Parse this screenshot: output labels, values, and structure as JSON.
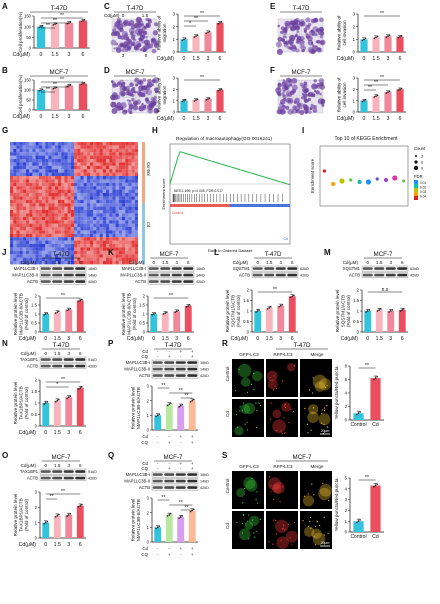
{
  "colors": {
    "bar": [
      "#33c3dd",
      "#f7b4bc",
      "#f0879a",
      "#ea4f60"
    ],
    "barCq": [
      "#33c3dd",
      "#b8e8a0",
      "#d79ef0",
      "#ffb896"
    ],
    "barRS": [
      "#33c3dd",
      "#ea4f60"
    ],
    "heatRed": "#e22c2c",
    "heatBlue": "#2b3fd4",
    "gseaLine": "#1fb94a",
    "kegg": [
      "#e31a1c",
      "#f0a500",
      "#b8c400",
      "#5ec93c",
      "#12b7b1",
      "#1e90ff",
      "#5c4fd6",
      "#9b45c7",
      "#d63aa3",
      "#7cc144"
    ]
  },
  "labels": {
    "cd": "Cd(μM)",
    "doses": [
      "0",
      "1.5",
      "3",
      "6"
    ],
    "cq": "CQ",
    "pm": [
      "-",
      "+",
      "-",
      "+"
    ],
    "cdRow": [
      "-",
      "-",
      "+",
      "+"
    ],
    "sig": {
      "two": "**",
      "one": "*",
      "ns": "n.s"
    }
  },
  "panels": {
    "A": {
      "letter": "A",
      "cell": "T-47D",
      "ylabel": "Cell proliferation(%)"
    },
    "B": {
      "letter": "B",
      "cell": "MCF-7",
      "ylabel": "Cell proliferation(%)"
    },
    "C": {
      "letter": "C",
      "cell": "T-47D",
      "ylabel": "Relative ability of migration",
      "imgLabels": [
        "0",
        "1.5",
        "3",
        "6"
      ]
    },
    "D": {
      "letter": "D",
      "cell": "MCF-7",
      "ylabel": "Relative ability of migration"
    },
    "E": {
      "letter": "E",
      "cell": "T-47D",
      "ylabel": "Relative ability of cell invasion",
      "imgLabels": [
        "0",
        "1.5",
        "3",
        "6"
      ]
    },
    "F": {
      "letter": "F",
      "cell": "MCF-7",
      "ylabel": "Relative ability of cell invasion"
    },
    "G": {
      "letter": "G",
      "legend": [
        "Control",
        "Cd"
      ]
    },
    "H": {
      "letter": "H",
      "title": "Regulation of macroautophagy(GO:0016241)",
      "stats": "NES:1.699, p=0.005, FDR:0.017",
      "xlabel": "Rank in Ordered Dataset",
      "ylabel": "Enrichment score",
      "pos": "Control",
      "neg": "Cd"
    },
    "I": {
      "letter": "I",
      "title": "Top 10 of KEGG Enrichment",
      "ylabel": "Enrichment score",
      "count": "Count",
      "fdr": "FDR",
      "countVals": [
        "3",
        "6",
        "9"
      ],
      "fdrVals": [
        "0.01",
        "0.02",
        "0.03",
        "0.04"
      ]
    },
    "J": {
      "letter": "J",
      "cell": "T-47D",
      "bands": [
        "MAP1LC3B-I",
        "MAP1LC3B-II",
        "ACTB"
      ],
      "kda": [
        "16kD",
        "14kD",
        "42kD"
      ],
      "ylabel": "Relative protein level MAP1LC3B-II/ACTB (Fold of control)"
    },
    "K": {
      "letter": "K",
      "cell": "MCF-7",
      "bands": [
        "MAP1LC3B-I",
        "MAP1LC3B-II",
        "ACTB"
      ],
      "kda": [
        "16kD",
        "14kD",
        "42kD"
      ],
      "ylabel": "Relative protein level MAP1LC3B-II/ACTB (Fold of control)"
    },
    "L": {
      "letter": "L",
      "cell": "T-47D",
      "bands": [
        "SQSTM1",
        "ACTB"
      ],
      "kda": [
        "62kD",
        "42kD"
      ],
      "ylabel": "Relative protein level SQSTM1/ACTB (Fold of control)"
    },
    "M": {
      "letter": "M",
      "cell": "MCF-7",
      "bands": [
        "SQSTM1",
        "ACTB"
      ],
      "kda": [
        "62kD",
        "42kD"
      ],
      "ylabel": "Relative protein level SQSTM1/ACTB (Fold of control)"
    },
    "N": {
      "letter": "N",
      "cell": "T-47D",
      "bands": [
        "TAX1BP1",
        "ACTB"
      ],
      "kda": [
        "91kD",
        "42kD"
      ],
      "ylabel": "Relative protein level TAX1BP1/ACTB (Fold of control)"
    },
    "O": {
      "letter": "O",
      "cell": "MCF-7",
      "bands": [
        "TAX1BP1",
        "ACTB"
      ],
      "kda": [
        "91kD",
        "42kD"
      ],
      "ylabel": "Relative protein level TAX1BP1/ACTB (Fold of control)"
    },
    "P": {
      "letter": "P",
      "cell": "T-47D",
      "bands": [
        "MAP1LC3B-I",
        "MAP1LC3B-II",
        "ACTB"
      ],
      "kda": [
        "16kD",
        "14kD",
        "42kD"
      ],
      "ylabel": "Relative protein level MAP1LC3B-II/ACTB"
    },
    "Q": {
      "letter": "Q",
      "cell": "MCF-7",
      "bands": [
        "MAP1LC3B-I",
        "MAP1LC3B-II",
        "ACTB"
      ],
      "kda": [
        "16kD",
        "14kD",
        "42kD"
      ],
      "ylabel": "Relative protein level MAP1LC3B-II/ACTB"
    },
    "R": {
      "letter": "R",
      "cell": "T-47D",
      "cols": [
        "GFP-LC3",
        "RFP-LC3",
        "Merge"
      ],
      "rows": [
        "Control",
        "Cd"
      ],
      "scale": "20μm",
      "ylabel": "Yellow puncta/Red puncta",
      "xcats": [
        "Control",
        "Cd"
      ]
    },
    "S": {
      "letter": "S",
      "cell": "MCF-7",
      "cols": [
        "GFP-LC3",
        "RFP-LC3",
        "Merge"
      ],
      "rows": [
        "Control",
        "Cd"
      ],
      "scale": "20μm",
      "ylabel": "Yellow puncta/Red puncta",
      "xcats": [
        "Control",
        "Cd"
      ]
    }
  },
  "chart_data": [
    {
      "panel": "A",
      "type": "bar",
      "categories": [
        "0",
        "1.5",
        "3",
        "6"
      ],
      "values": [
        100,
        112,
        118,
        128
      ],
      "ylim": [
        0,
        150
      ],
      "yticks": [
        0,
        50,
        100,
        150
      ]
    },
    {
      "panel": "B",
      "type": "bar",
      "categories": [
        "0",
        "1.5",
        "3",
        "6"
      ],
      "values": [
        100,
        110,
        122,
        132
      ],
      "ylim": [
        0,
        150
      ],
      "yticks": [
        0,
        50,
        100,
        150
      ]
    },
    {
      "panel": "C",
      "type": "bar",
      "categories": [
        "0",
        "1.5",
        "3",
        "6"
      ],
      "values": [
        1.0,
        1.25,
        1.55,
        2.3
      ],
      "ylim": [
        0,
        3
      ],
      "yticks": [
        0,
        1,
        2,
        3
      ]
    },
    {
      "panel": "D",
      "type": "bar",
      "categories": [
        "0",
        "1.5",
        "3",
        "6"
      ],
      "values": [
        1.0,
        1.05,
        1.15,
        1.95
      ],
      "ylim": [
        0,
        3
      ],
      "yticks": [
        0,
        1,
        2,
        3
      ]
    },
    {
      "panel": "E",
      "type": "bar",
      "categories": [
        "0",
        "1.5",
        "3",
        "6"
      ],
      "values": [
        1.0,
        1.15,
        1.25,
        1.2
      ],
      "ylim": [
        0,
        3
      ],
      "yticks": [
        0,
        1,
        2,
        3
      ]
    },
    {
      "panel": "F",
      "type": "bar",
      "categories": [
        "0",
        "1.5",
        "3",
        "6"
      ],
      "values": [
        1.0,
        1.4,
        1.75,
        2.0
      ],
      "ylim": [
        0,
        3
      ],
      "yticks": [
        0,
        1,
        2,
        3
      ]
    },
    {
      "panel": "J",
      "type": "bar",
      "categories": [
        "0",
        "1.5",
        "3",
        "6"
      ],
      "values": [
        1.0,
        1.1,
        1.25,
        1.75
      ],
      "ylim": [
        0,
        2
      ],
      "yticks": [
        0,
        0.5,
        1,
        1.5,
        2
      ]
    },
    {
      "panel": "K",
      "type": "bar",
      "categories": [
        "0",
        "1.5",
        "3",
        "6"
      ],
      "values": [
        1.0,
        1.05,
        1.15,
        1.45
      ],
      "ylim": [
        0,
        2
      ],
      "yticks": [
        0,
        0.5,
        1,
        1.5,
        2
      ]
    },
    {
      "panel": "L",
      "type": "bar",
      "categories": [
        "0",
        "1.5",
        "3",
        "6"
      ],
      "values": [
        1.0,
        1.15,
        1.25,
        1.7
      ],
      "ylim": [
        0,
        2
      ],
      "yticks": [
        0,
        0.5,
        1,
        1.5,
        2
      ]
    },
    {
      "panel": "M",
      "type": "bar",
      "categories": [
        "0",
        "1.5",
        "3",
        "6"
      ],
      "values": [
        1.0,
        1.05,
        1.0,
        1.05
      ],
      "ylim": [
        0,
        2
      ],
      "yticks": [
        0,
        0.5,
        1,
        1.5,
        2
      ]
    },
    {
      "panel": "N",
      "type": "bar",
      "categories": [
        "0",
        "1.5",
        "3",
        "6"
      ],
      "values": [
        1.0,
        1.1,
        1.25,
        1.65
      ],
      "ylim": [
        0,
        2
      ],
      "yticks": [
        0,
        0.5,
        1,
        1.5,
        2
      ]
    },
    {
      "panel": "O",
      "type": "bar",
      "categories": [
        "0",
        "1.5",
        "3",
        "6"
      ],
      "values": [
        1.0,
        1.45,
        1.5,
        2.1
      ],
      "ylim": [
        0,
        3
      ],
      "yticks": [
        0,
        1,
        2,
        3
      ]
    },
    {
      "panel": "P",
      "type": "bar",
      "categories": [
        "1",
        "2",
        "3",
        "4"
      ],
      "values": [
        1.0,
        1.75,
        1.65,
        2.0
      ],
      "ylim": [
        0,
        3
      ],
      "yticks": [
        0,
        1,
        2,
        3
      ]
    },
    {
      "panel": "Q",
      "type": "bar",
      "categories": [
        "1",
        "2",
        "3",
        "4"
      ],
      "values": [
        1.0,
        1.85,
        1.7,
        2.15
      ],
      "ylim": [
        0,
        3
      ],
      "yticks": [
        0,
        1,
        2,
        3
      ]
    },
    {
      "panel": "R",
      "type": "bar",
      "categories": [
        "Control",
        "Cd"
      ],
      "values": [
        1.0,
        6.2
      ],
      "ylim": [
        0,
        8
      ],
      "yticks": [
        0,
        2,
        4,
        6,
        8
      ]
    },
    {
      "panel": "S",
      "type": "bar",
      "categories": [
        "Control",
        "Cd"
      ],
      "values": [
        1.0,
        4.3
      ],
      "ylim": [
        0,
        5
      ],
      "yticks": [
        0,
        1,
        2,
        3,
        4,
        5
      ]
    },
    {
      "panel": "I",
      "type": "scatter",
      "x": [
        1,
        2,
        3,
        4,
        5,
        6,
        7,
        8,
        9,
        10
      ],
      "y": [
        0.35,
        0.22,
        0.25,
        0.26,
        0.24,
        0.24,
        0.27,
        0.26,
        0.28,
        0.25
      ],
      "ylim": [
        0,
        0.6
      ]
    }
  ]
}
